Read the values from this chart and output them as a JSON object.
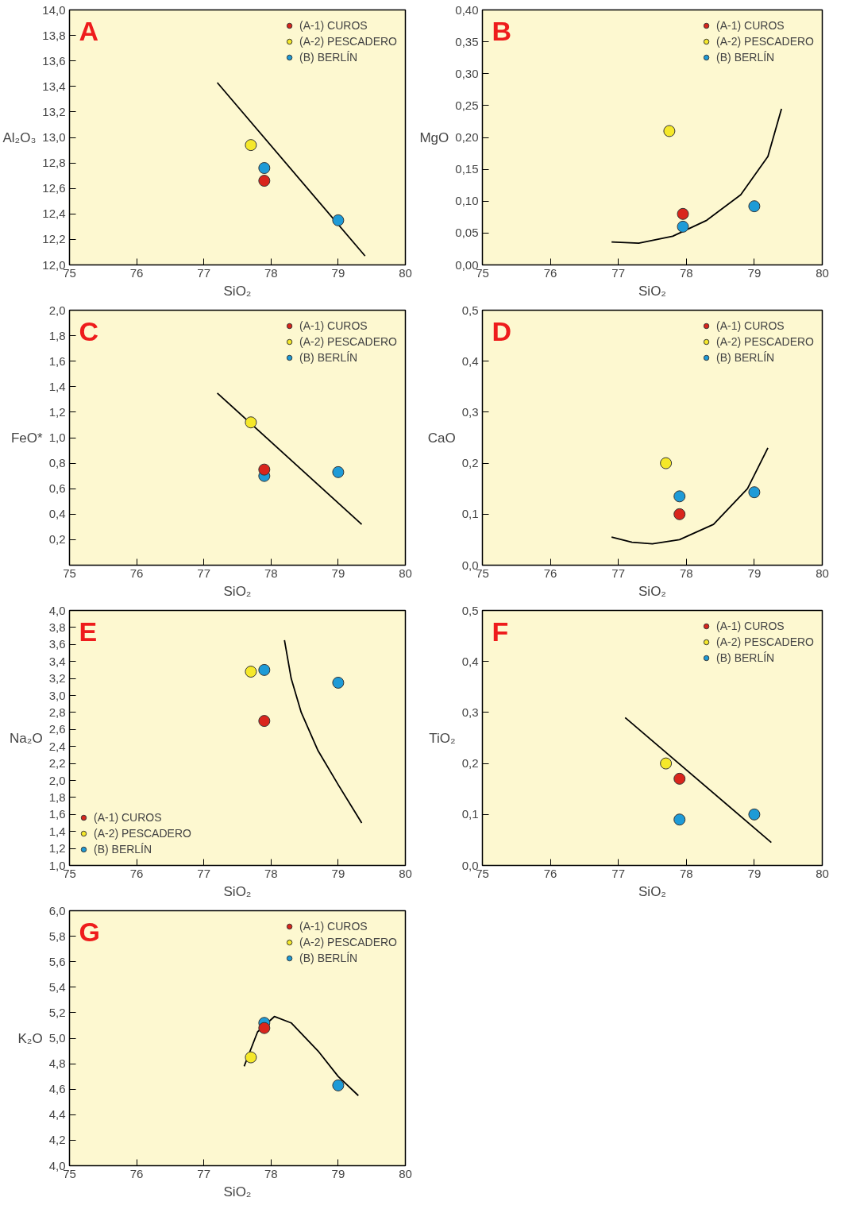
{
  "chart_data": [
    {
      "type": "scatter",
      "title": "A",
      "xlabel": "SiO₂",
      "ylabel": "Al₂O₃",
      "xlim": [
        75,
        80
      ],
      "ylim": [
        12.0,
        14.0
      ],
      "xticks": [
        75,
        76,
        77,
        78,
        79,
        80
      ],
      "yticks": [
        {
          "value": 12.0,
          "label": "12,0"
        },
        {
          "value": 12.2,
          "label": "12,2"
        },
        {
          "value": 12.4,
          "label": "12,4"
        },
        {
          "value": 12.6,
          "label": "12,6"
        },
        {
          "value": 12.8,
          "label": "12,8"
        },
        {
          "value": 13.0,
          "label": "13,0"
        },
        {
          "value": 13.2,
          "label": "13,2"
        },
        {
          "value": 13.4,
          "label": "13,4"
        },
        {
          "value": 13.6,
          "label": "13,6"
        },
        {
          "value": 13.8,
          "label": "13,8"
        },
        {
          "value": 14.0,
          "label": "14,0"
        }
      ],
      "legend": "top right",
      "marker": "circle",
      "series": [
        {
          "name": "(A-1) CUROS",
          "color": "#d9251c",
          "x": [
            77.9
          ],
          "values": [
            12.66
          ]
        },
        {
          "name": "(A-2) PESCADERO",
          "color": "#f5e82a",
          "x": [
            77.7
          ],
          "values": [
            12.94
          ]
        },
        {
          "name": "(B) BERLÍN",
          "color": "#1e9bd7",
          "x": [
            77.9,
            79.0
          ],
          "values": [
            12.76,
            12.35
          ]
        },
        {
          "type": "line",
          "marker": "none",
          "color": "#000000",
          "x": [
            77.2,
            79.4
          ],
          "values": [
            13.43,
            12.07
          ]
        }
      ]
    },
    {
      "type": "scatter",
      "title": "B",
      "xlabel": "SiO₂",
      "ylabel": "MgO",
      "xlim": [
        75,
        80
      ],
      "ylim": [
        0,
        0.4
      ],
      "xticks": [
        75,
        76,
        77,
        78,
        79,
        80
      ],
      "yticks": [
        {
          "value": 0,
          "label": "0,00"
        },
        {
          "value": 0.05,
          "label": "0,05"
        },
        {
          "value": 0.1,
          "label": "0,10"
        },
        {
          "value": 0.15,
          "label": "0,15"
        },
        {
          "value": 0.2,
          "label": "0,20"
        },
        {
          "value": 0.25,
          "label": "0,25"
        },
        {
          "value": 0.3,
          "label": "0,30"
        },
        {
          "value": 0.35,
          "label": "0,35"
        },
        {
          "value": 0.4,
          "label": "0,40"
        }
      ],
      "legend": "top right",
      "marker": "circle",
      "series": [
        {
          "name": "(A-1) CUROS",
          "color": "#d9251c",
          "x": [
            77.95
          ],
          "values": [
            0.08
          ]
        },
        {
          "name": "(A-2) PESCADERO",
          "color": "#f5e82a",
          "x": [
            77.75
          ],
          "values": [
            0.21
          ]
        },
        {
          "name": "(B) BERLÍN",
          "color": "#1e9bd7",
          "x": [
            77.95,
            79.0
          ],
          "values": [
            0.06,
            0.092
          ]
        },
        {
          "type": "line",
          "marker": "none",
          "color": "#000000",
          "x": [
            76.9,
            77.3,
            77.8,
            78.3,
            78.8,
            79.2,
            79.4
          ],
          "values": [
            0.036,
            0.034,
            0.045,
            0.07,
            0.11,
            0.17,
            0.245
          ]
        }
      ]
    },
    {
      "type": "scatter",
      "title": "C",
      "xlabel": "SiO₂",
      "ylabel": "FeO*",
      "xlim": [
        75,
        80
      ],
      "ylim": [
        0,
        2.0
      ],
      "xticks": [
        75,
        76,
        77,
        78,
        79,
        80
      ],
      "yticks": [
        {
          "value": 0.2,
          "label": "0,2"
        },
        {
          "value": 0.4,
          "label": "0,4"
        },
        {
          "value": 0.6,
          "label": "0,6"
        },
        {
          "value": 0.8,
          "label": "0,8"
        },
        {
          "value": 1.0,
          "label": "1,0"
        },
        {
          "value": 1.2,
          "label": "1,2"
        },
        {
          "value": 1.4,
          "label": "1,4"
        },
        {
          "value": 1.6,
          "label": "1,6"
        },
        {
          "value": 1.8,
          "label": "1,8"
        },
        {
          "value": 2.0,
          "label": "2,0"
        }
      ],
      "legend": "top right",
      "marker": "circle",
      "series": [
        {
          "name": "(A-1) CUROS",
          "color": "#d9251c",
          "x": [
            77.9
          ],
          "values": [
            0.75
          ]
        },
        {
          "name": "(A-2) PESCADERO",
          "color": "#f5e82a",
          "x": [
            77.7
          ],
          "values": [
            1.12
          ]
        },
        {
          "name": "(B) BERLÍN",
          "color": "#1e9bd7",
          "x": [
            77.9,
            79.0
          ],
          "values": [
            0.7,
            0.73
          ]
        },
        {
          "type": "line",
          "marker": "none",
          "color": "#000000",
          "x": [
            77.2,
            79.35
          ],
          "values": [
            1.35,
            0.32
          ]
        }
      ]
    },
    {
      "type": "scatter",
      "title": "D",
      "xlabel": "SiO₂",
      "ylabel": "CaO",
      "xlim": [
        75,
        80
      ],
      "ylim": [
        0,
        0.5
      ],
      "xticks": [
        75,
        76,
        77,
        78,
        79,
        80
      ],
      "yticks": [
        {
          "value": 0,
          "label": "0,0"
        },
        {
          "value": 0.1,
          "label": "0,1"
        },
        {
          "value": 0.2,
          "label": "0,2"
        },
        {
          "value": 0.3,
          "label": "0,3"
        },
        {
          "value": 0.4,
          "label": "0,4"
        },
        {
          "value": 0.5,
          "label": "0,5"
        }
      ],
      "legend": "top right",
      "marker": "circle",
      "series": [
        {
          "name": "(A-1) CUROS",
          "color": "#d9251c",
          "x": [
            77.9
          ],
          "values": [
            0.1
          ]
        },
        {
          "name": "(A-2) PESCADERO",
          "color": "#f5e82a",
          "x": [
            77.7
          ],
          "values": [
            0.2
          ]
        },
        {
          "name": "(B) BERLÍN",
          "color": "#1e9bd7",
          "x": [
            77.9,
            79.0
          ],
          "values": [
            0.135,
            0.143
          ]
        },
        {
          "type": "line",
          "marker": "none",
          "color": "#000000",
          "x": [
            76.9,
            77.2,
            77.5,
            77.9,
            78.4,
            78.9,
            79.2
          ],
          "values": [
            0.055,
            0.045,
            0.042,
            0.05,
            0.08,
            0.15,
            0.23
          ]
        }
      ]
    },
    {
      "type": "scatter",
      "title": "E",
      "xlabel": "SiO₂",
      "ylabel": "Na₂O",
      "xlim": [
        75,
        80
      ],
      "ylim": [
        1.0,
        4.0
      ],
      "xticks": [
        75,
        76,
        77,
        78,
        79,
        80
      ],
      "yticks": [
        {
          "value": 1.0,
          "label": "1,0"
        },
        {
          "value": 1.2,
          "label": "1,2"
        },
        {
          "value": 1.4,
          "label": "1,4"
        },
        {
          "value": 1.6,
          "label": "1,6"
        },
        {
          "value": 1.8,
          "label": "1,8"
        },
        {
          "value": 2.0,
          "label": "2,0"
        },
        {
          "value": 2.2,
          "label": "2,2"
        },
        {
          "value": 2.4,
          "label": "2,4"
        },
        {
          "value": 2.6,
          "label": "2,6"
        },
        {
          "value": 2.8,
          "label": "2,8"
        },
        {
          "value": 3.0,
          "label": "3,0"
        },
        {
          "value": 3.2,
          "label": "3,2"
        },
        {
          "value": 3.4,
          "label": "3,4"
        },
        {
          "value": 3.6,
          "label": "3,6"
        },
        {
          "value": 3.8,
          "label": "3,8"
        },
        {
          "value": 4.0,
          "label": "4,0"
        }
      ],
      "legend": "bottom left",
      "marker": "circle",
      "series": [
        {
          "name": "(A-1) CUROS",
          "color": "#d9251c",
          "x": [
            77.9
          ],
          "values": [
            2.7
          ]
        },
        {
          "name": "(A-2) PESCADERO",
          "color": "#f5e82a",
          "x": [
            77.7
          ],
          "values": [
            3.28
          ]
        },
        {
          "name": "(B) BERLÍN",
          "color": "#1e9bd7",
          "x": [
            77.9,
            79.0
          ],
          "values": [
            3.3,
            3.15
          ]
        },
        {
          "type": "line",
          "marker": "none",
          "color": "#000000",
          "x": [
            78.2,
            78.3,
            78.45,
            78.7,
            79.0,
            79.35
          ],
          "values": [
            3.65,
            3.2,
            2.8,
            2.35,
            1.95,
            1.5
          ]
        }
      ]
    },
    {
      "type": "scatter",
      "title": "F",
      "xlabel": "SiO₂",
      "ylabel": "TiO₂",
      "xlim": [
        75,
        80
      ],
      "ylim": [
        0,
        0.5
      ],
      "xticks": [
        75,
        76,
        77,
        78,
        79,
        80
      ],
      "yticks": [
        {
          "value": 0,
          "label": "0,0"
        },
        {
          "value": 0.1,
          "label": "0,1"
        },
        {
          "value": 0.2,
          "label": "0,2"
        },
        {
          "value": 0.3,
          "label": "0,3"
        },
        {
          "value": 0.4,
          "label": "0,4"
        },
        {
          "value": 0.5,
          "label": "0,5"
        }
      ],
      "legend": "top right",
      "marker": "circle",
      "series": [
        {
          "name": "(A-1) CUROS",
          "color": "#d9251c",
          "x": [
            77.9
          ],
          "values": [
            0.17
          ]
        },
        {
          "name": "(A-2) PESCADERO",
          "color": "#f5e82a",
          "x": [
            77.7
          ],
          "values": [
            0.2
          ]
        },
        {
          "name": "(B) BERLÍN",
          "color": "#1e9bd7",
          "x": [
            77.9,
            79.0
          ],
          "values": [
            0.09,
            0.1
          ]
        },
        {
          "type": "line",
          "marker": "none",
          "color": "#000000",
          "x": [
            77.1,
            79.25
          ],
          "values": [
            0.29,
            0.045
          ]
        }
      ]
    },
    {
      "type": "scatter",
      "title": "G",
      "xlabel": "SiO₂",
      "ylabel": "K₂O",
      "xlim": [
        75,
        80
      ],
      "ylim": [
        4.0,
        6.0
      ],
      "xticks": [
        75,
        76,
        77,
        78,
        79,
        80
      ],
      "yticks": [
        {
          "value": 4.0,
          "label": "4,0"
        },
        {
          "value": 4.2,
          "label": "4,2"
        },
        {
          "value": 4.4,
          "label": "4,4"
        },
        {
          "value": 4.6,
          "label": "4,6"
        },
        {
          "value": 4.8,
          "label": "4,8"
        },
        {
          "value": 5.0,
          "label": "5,0"
        },
        {
          "value": 5.2,
          "label": "5,2"
        },
        {
          "value": 5.4,
          "label": "5,4"
        },
        {
          "value": 5.6,
          "label": "5,6"
        },
        {
          "value": 5.8,
          "label": "5,8"
        },
        {
          "value": 6.0,
          "label": "6,0"
        }
      ],
      "legend": "top right",
      "marker": "circle",
      "series": [
        {
          "name": "(A-1) CUROS",
          "color": "#d9251c",
          "x": [
            77.9
          ],
          "values": [
            5.08
          ]
        },
        {
          "name": "(A-2) PESCADERO",
          "color": "#f5e82a",
          "x": [
            77.7
          ],
          "values": [
            4.85
          ]
        },
        {
          "name": "(B) BERLÍN",
          "color": "#1e9bd7",
          "x": [
            77.9,
            79.0
          ],
          "values": [
            5.12,
            4.63
          ]
        },
        {
          "type": "line",
          "marker": "none",
          "color": "#000000",
          "x": [
            77.6,
            77.8,
            78.05,
            78.3,
            78.7,
            79.0,
            79.3
          ],
          "values": [
            4.78,
            5.05,
            5.17,
            5.12,
            4.9,
            4.7,
            4.55
          ]
        }
      ]
    }
  ]
}
